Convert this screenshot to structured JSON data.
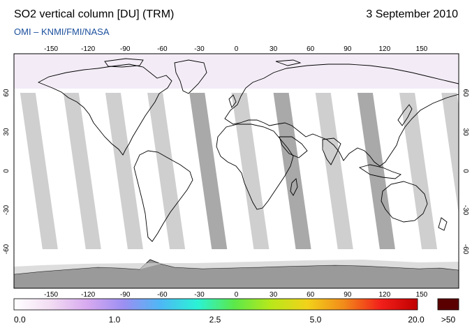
{
  "title": "SO2 vertical column [DU] (TRM)",
  "date": "3 September 2010",
  "source": "OMI  –  KNMI/FMI/NASA",
  "map": {
    "lon_ticks": [
      "-150",
      "-120",
      "-90",
      "-60",
      "-30",
      "0",
      "30",
      "60",
      "90",
      "120",
      "150"
    ],
    "lat_ticks": [
      "60",
      "30",
      "0",
      "-30",
      "-60"
    ],
    "lon_range": [
      -180,
      180
    ],
    "lat_range": [
      -90,
      90
    ],
    "colors": {
      "background": "#ffffff",
      "swath": "#cfcfcf",
      "swath_dark": "#a9a9a9",
      "antarctica": "#9a9a9a",
      "arctic_tint": "#f1e9f6",
      "coast": "#000000"
    }
  },
  "colorbar": {
    "labels": [
      "0.0",
      "1.0",
      "2.5",
      "5.0",
      "20.0"
    ],
    "overflow_label": ">50",
    "stops": [
      "#ffffff",
      "#f2dcf2",
      "#d7a9f0",
      "#9b8ff2",
      "#4db8f5",
      "#2bf2d6",
      "#5be84a",
      "#b8e81a",
      "#f2d21a",
      "#f28a1a",
      "#f21f1a",
      "#c00000"
    ],
    "overflow_color": "#5a0000"
  }
}
